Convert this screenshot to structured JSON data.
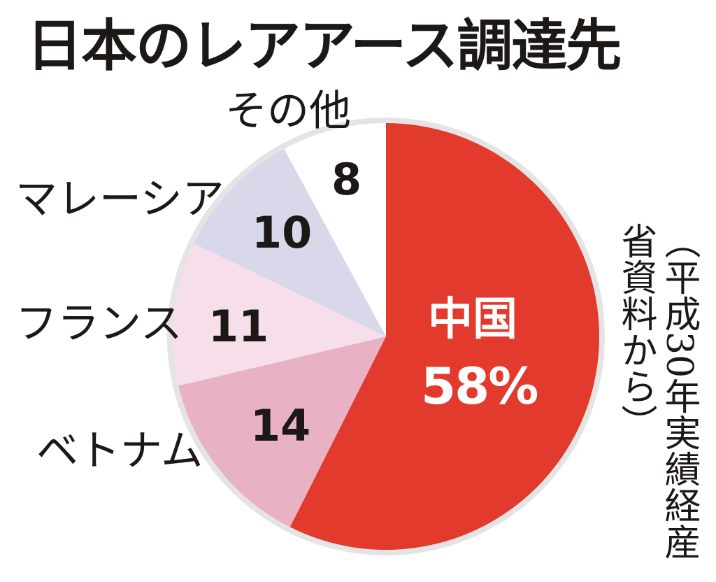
{
  "title": "日本のレアアース調達先",
  "source_note": "（平成30年実績経産省資料から）",
  "chart_data": {
    "type": "pie",
    "title": "日本のレアアース調達先",
    "unit": "%",
    "start": "12 o'clock",
    "direction": "clockwise",
    "slices": [
      {
        "label": "中国",
        "value": 58,
        "value_text": "58%",
        "color": "#e23a2d"
      },
      {
        "label": "ベトナム",
        "value": 14,
        "value_text": "14",
        "color": "#e8b1c4"
      },
      {
        "label": "フランス",
        "value": 11,
        "value_text": "11",
        "color": "#f6dfea"
      },
      {
        "label": "マレーシア",
        "value": 10,
        "value_text": "10",
        "color": "#d9d8ea"
      },
      {
        "label": "その他",
        "value": 8,
        "value_text": "8",
        "color": "#ffffff"
      }
    ]
  }
}
